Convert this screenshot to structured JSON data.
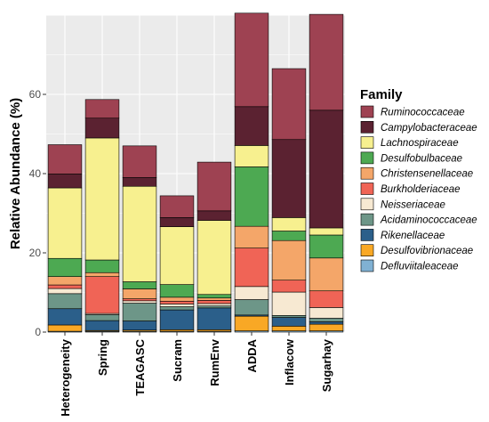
{
  "chart_data": {
    "type": "bar",
    "stacked": true,
    "ylabel": "Relative Abundance (%)",
    "xlabel": "",
    "ylim": [
      0,
      80
    ],
    "yticks": [
      0,
      20,
      40,
      60
    ],
    "grid": true,
    "legend": {
      "title": "Family",
      "position": "right"
    },
    "categories": [
      "Heterogeneity",
      "Spring",
      "TEAGASC",
      "Sucram",
      "RumEnv",
      "ADDA",
      "Inflacow",
      "Sugarhay"
    ],
    "series": [
      {
        "name": "Defluviitaleaceae",
        "color": "#80b1d3",
        "values": [
          0.2,
          0.2,
          0.2,
          0.2,
          0.2,
          0.3,
          0.3,
          0.3
        ]
      },
      {
        "name": "Desulfovibrionaceae",
        "color": "#f9a825",
        "values": [
          1.6,
          0.2,
          0.3,
          0.4,
          0.4,
          3.7,
          1.2,
          1.7
        ]
      },
      {
        "name": "Rikenellaceae",
        "color": "#2b5f8a",
        "values": [
          4.1,
          2.5,
          2.3,
          5.0,
          5.5,
          0.3,
          2.2,
          0.6
        ]
      },
      {
        "name": "Acidaminococcaceae",
        "color": "#6d9688",
        "values": [
          3.8,
          1.5,
          4.5,
          0.8,
          0.5,
          3.9,
          0.5,
          0.9
        ]
      },
      {
        "name": "Neisseriaceae",
        "color": "#f7e9d2",
        "values": [
          1.3,
          0.3,
          0.6,
          0.7,
          0.6,
          3.3,
          5.9,
          2.7
        ]
      },
      {
        "name": "Burkholderiaceae",
        "color": "#f06456",
        "values": [
          0.9,
          9.3,
          0.5,
          0.7,
          0.8,
          9.7,
          3.0,
          4.2
        ]
      },
      {
        "name": "Christensenellaceae",
        "color": "#f4a669",
        "values": [
          2.1,
          1.0,
          2.5,
          1.0,
          0.6,
          5.5,
          10.0,
          8.3
        ]
      },
      {
        "name": "Desulfobulbaceae",
        "color": "#4da952",
        "values": [
          4.6,
          3.2,
          1.8,
          3.2,
          0.9,
          15.0,
          2.4,
          5.8
        ]
      },
      {
        "name": "Lachnospiraceae",
        "color": "#f7f08f",
        "values": [
          17.8,
          30.8,
          24.1,
          14.6,
          18.7,
          5.4,
          3.4,
          1.8
        ]
      },
      {
        "name": "Campylobacteraceae",
        "color": "#5b2231",
        "values": [
          3.5,
          5.0,
          2.2,
          2.3,
          2.4,
          9.8,
          19.7,
          29.7
        ]
      },
      {
        "name": "Ruminococcaceae",
        "color": "#9e4252",
        "values": [
          7.4,
          4.7,
          8.0,
          5.5,
          12.3,
          23.6,
          17.9,
          24.2
        ]
      }
    ]
  }
}
